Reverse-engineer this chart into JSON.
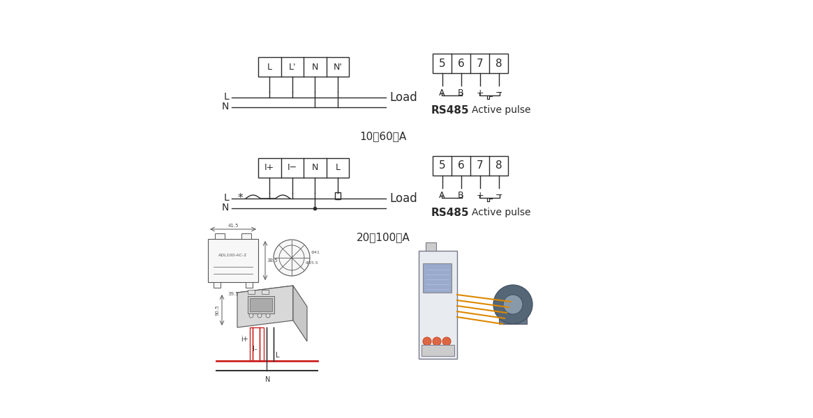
{
  "bg_color": "#ffffff",
  "line_color": "#2a2a2a",
  "diagram1": {
    "label": "10（60）A",
    "terminals": [
      "L",
      "L'",
      "N",
      "N'"
    ],
    "comm_terminals": [
      "5",
      "6",
      "7",
      "8"
    ],
    "comm_labels": [
      "A",
      "B",
      "+",
      "−"
    ]
  },
  "diagram2": {
    "label": "20（100）A",
    "terminals": [
      "I+",
      "I−",
      "N",
      "L"
    ],
    "comm_terminals": [
      "5",
      "6",
      "7",
      "8"
    ],
    "comm_labels": [
      "A",
      "B",
      "+",
      "−"
    ]
  },
  "red_color": "#cc2222",
  "draw_color": "#555555",
  "term_fontsize": 9,
  "label_fontsize": 10,
  "section_fontsize": 11,
  "rs485_fontsize": 11,
  "load_fontsize": 12
}
